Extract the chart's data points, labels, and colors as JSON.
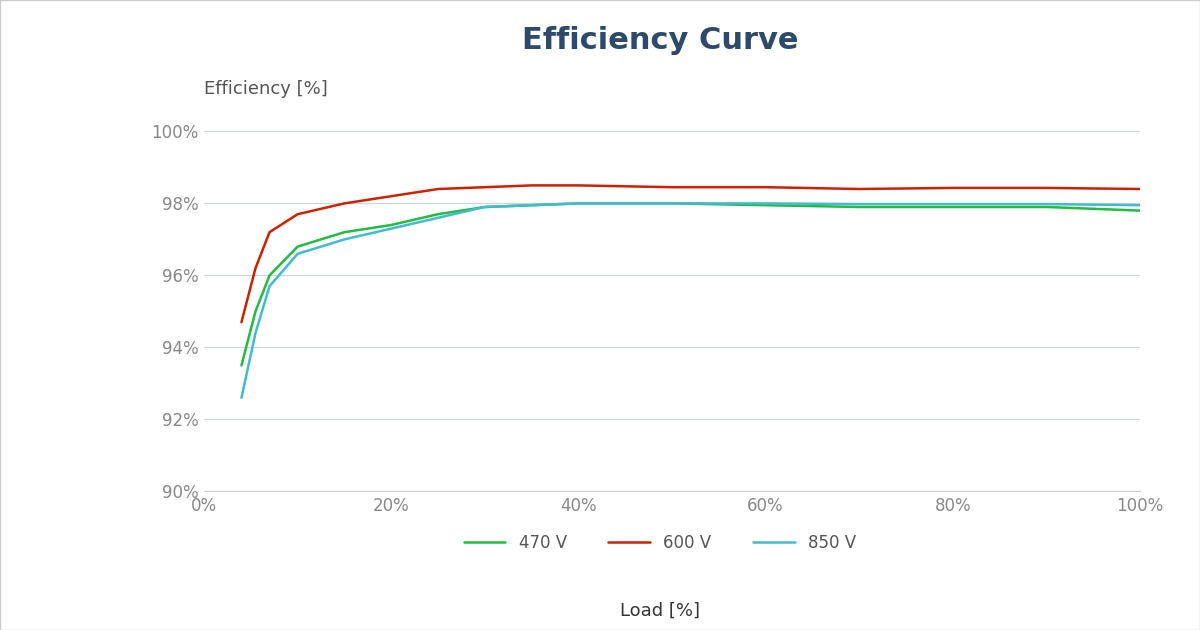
{
  "title": "Efficiency Curve",
  "title_color": "#2d4a6b",
  "title_fontsize": 22,
  "xlabel": "Load [%]",
  "ylabel": "Efficiency [%]",
  "label_fontsize": 13,
  "tick_fontsize": 12,
  "background_color": "#f0f0f0",
  "card_color": "#ffffff",
  "plot_bg_color": "#ffffff",
  "grid_color": "#c8d4e8",
  "xlim": [
    0,
    1.0
  ],
  "ylim": [
    0.9,
    1.005
  ],
  "xticks": [
    0,
    0.2,
    0.4,
    0.6,
    0.8,
    1.0
  ],
  "yticks": [
    0.9,
    0.92,
    0.94,
    0.96,
    0.98,
    1.0
  ],
  "series": [
    {
      "label": "470 V",
      "color": "#22bb44",
      "linewidth": 1.8,
      "x": [
        0.04,
        0.055,
        0.07,
        0.1,
        0.15,
        0.2,
        0.25,
        0.3,
        0.35,
        0.4,
        0.5,
        0.6,
        0.7,
        0.8,
        0.9,
        1.0
      ],
      "y": [
        0.935,
        0.95,
        0.96,
        0.968,
        0.972,
        0.974,
        0.977,
        0.979,
        0.9795,
        0.98,
        0.98,
        0.9795,
        0.979,
        0.979,
        0.979,
        0.978
      ]
    },
    {
      "label": "600 V",
      "color": "#cc2200",
      "linewidth": 1.8,
      "x": [
        0.04,
        0.055,
        0.07,
        0.1,
        0.15,
        0.2,
        0.25,
        0.3,
        0.35,
        0.4,
        0.5,
        0.6,
        0.7,
        0.8,
        0.9,
        1.0
      ],
      "y": [
        0.947,
        0.962,
        0.972,
        0.977,
        0.98,
        0.982,
        0.984,
        0.9845,
        0.985,
        0.985,
        0.9845,
        0.9845,
        0.984,
        0.9843,
        0.9843,
        0.984
      ]
    },
    {
      "label": "850 V",
      "color": "#44bbcc",
      "linewidth": 1.8,
      "x": [
        0.04,
        0.055,
        0.07,
        0.1,
        0.15,
        0.2,
        0.25,
        0.3,
        0.35,
        0.4,
        0.5,
        0.6,
        0.7,
        0.8,
        0.9,
        1.0
      ],
      "y": [
        0.926,
        0.944,
        0.957,
        0.966,
        0.97,
        0.973,
        0.976,
        0.979,
        0.9795,
        0.98,
        0.98,
        0.98,
        0.9798,
        0.9798,
        0.9798,
        0.9795
      ]
    }
  ],
  "legend_fontsize": 12,
  "legend_ncol": 3,
  "tick_color": "#888888",
  "spine_color": "#cccccc",
  "xlabel_fontsize": 13,
  "xlabel_color": "#333333"
}
